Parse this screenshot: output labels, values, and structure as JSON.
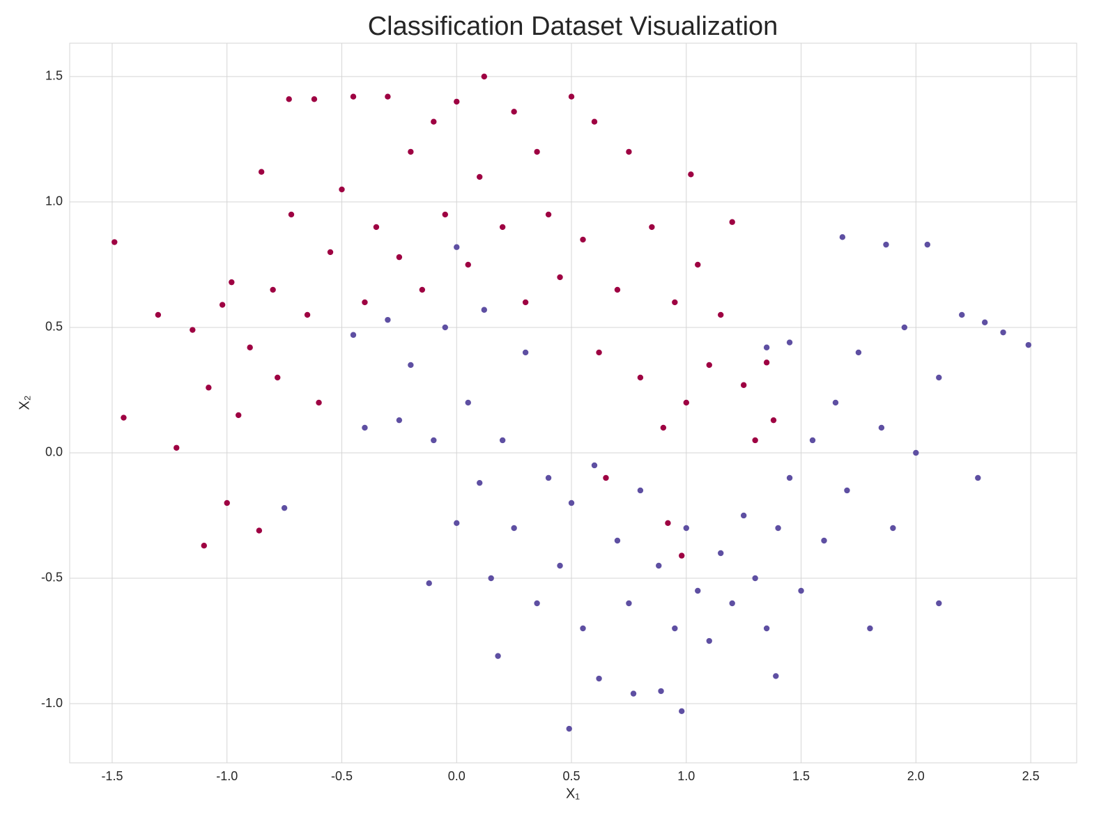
{
  "chart_data": {
    "type": "scatter",
    "title": "Classification Dataset Visualization",
    "xlabel": "X₁",
    "ylabel": "X₂",
    "xlim": [
      -1.685,
      2.7
    ],
    "ylim": [
      -1.236,
      1.633
    ],
    "xticks": [
      -1.5,
      {
        "value": -1,
        "label": "-1.0"
      },
      -0.5,
      {
        "value": 0,
        "label": "0.0"
      },
      0.5,
      {
        "value": 1,
        "label": "1.0"
      },
      1.5,
      {
        "value": 2,
        "label": "2.0"
      },
      2.5
    ],
    "yticks": [
      {
        "value": -1,
        "label": "-1.0"
      },
      -0.5,
      {
        "value": 0,
        "label": "0.0"
      },
      0.5,
      {
        "value": 1,
        "label": "1.0"
      },
      1.5
    ],
    "grid": true,
    "series": [
      {
        "color": "#9e0142",
        "x": [
          -1.49,
          -1.45,
          -1.3,
          -1.22,
          -1.15,
          -1.1,
          -1.08,
          -1.02,
          -1.0,
          -0.98,
          -0.95,
          -0.9,
          -0.86,
          -0.85,
          -0.8,
          -0.78,
          -0.73,
          -0.72,
          -0.65,
          -0.62,
          -0.6,
          -0.55,
          -0.5,
          -0.45,
          -0.4,
          -0.35,
          -0.3,
          -0.25,
          -0.2,
          -0.15,
          -0.1,
          -0.05,
          0.0,
          0.05,
          0.1,
          0.12,
          0.2,
          0.25,
          0.3,
          0.35,
          0.4,
          0.45,
          0.5,
          0.55,
          0.6,
          0.62,
          0.7,
          0.75,
          0.8,
          0.85,
          0.9,
          0.95,
          1.0,
          1.02,
          1.05,
          1.1,
          1.15,
          1.2,
          1.25,
          1.3,
          1.35,
          1.38,
          0.98,
          0.92,
          0.65
        ],
        "y": [
          0.84,
          0.14,
          0.55,
          0.02,
          0.49,
          -0.37,
          0.26,
          0.59,
          -0.2,
          0.68,
          0.15,
          0.42,
          -0.31,
          1.12,
          0.65,
          0.3,
          1.41,
          0.95,
          0.55,
          1.41,
          0.2,
          0.8,
          1.05,
          1.42,
          0.6,
          0.9,
          1.42,
          0.78,
          1.2,
          0.65,
          1.32,
          0.95,
          1.4,
          0.75,
          1.1,
          1.5,
          0.9,
          1.36,
          0.6,
          1.2,
          0.95,
          0.7,
          1.42,
          0.85,
          1.32,
          0.4,
          0.65,
          1.2,
          0.3,
          0.9,
          0.1,
          0.6,
          0.2,
          1.11,
          0.75,
          0.35,
          0.55,
          0.92,
          0.27,
          0.05,
          0.36,
          0.13,
          -0.41,
          -0.28,
          -0.1
        ]
      },
      {
        "color": "#5e4fa2",
        "x": [
          -0.75,
          -0.45,
          -0.4,
          -0.3,
          -0.25,
          -0.2,
          -0.12,
          -0.1,
          -0.05,
          0.0,
          0.0,
          0.05,
          0.1,
          0.12,
          0.15,
          0.18,
          0.2,
          0.25,
          0.3,
          0.35,
          0.4,
          0.45,
          0.49,
          0.5,
          0.55,
          0.6,
          0.62,
          0.7,
          0.75,
          0.77,
          0.8,
          0.88,
          0.89,
          0.95,
          0.98,
          1.0,
          1.05,
          1.1,
          1.15,
          1.2,
          1.25,
          1.3,
          1.35,
          1.39,
          1.4,
          1.45,
          1.5,
          1.55,
          1.6,
          1.65,
          1.68,
          1.7,
          1.75,
          1.8,
          1.85,
          1.87,
          1.9,
          1.95,
          2.0,
          2.05,
          2.1,
          2.1,
          2.2,
          2.27,
          2.3,
          2.38,
          2.49,
          1.45,
          1.35
        ],
        "y": [
          -0.22,
          0.47,
          0.1,
          0.53,
          0.13,
          0.35,
          -0.52,
          0.05,
          0.5,
          0.82,
          -0.28,
          0.2,
          -0.12,
          0.57,
          -0.5,
          -0.81,
          0.05,
          -0.3,
          0.4,
          -0.6,
          -0.1,
          -0.45,
          -1.1,
          -0.2,
          -0.7,
          -0.05,
          -0.9,
          -0.35,
          -0.6,
          -0.96,
          -0.15,
          -0.45,
          -0.95,
          -0.7,
          -1.03,
          -0.3,
          -0.55,
          -0.75,
          -0.4,
          -0.6,
          -0.25,
          -0.5,
          -0.7,
          -0.89,
          -0.3,
          -0.1,
          -0.55,
          0.05,
          -0.35,
          0.2,
          0.86,
          -0.15,
          0.4,
          -0.7,
          0.1,
          0.83,
          -0.3,
          0.5,
          0.0,
          0.83,
          -0.6,
          0.3,
          0.55,
          -0.1,
          0.52,
          0.48,
          0.43,
          0.44,
          0.42
        ]
      }
    ]
  }
}
